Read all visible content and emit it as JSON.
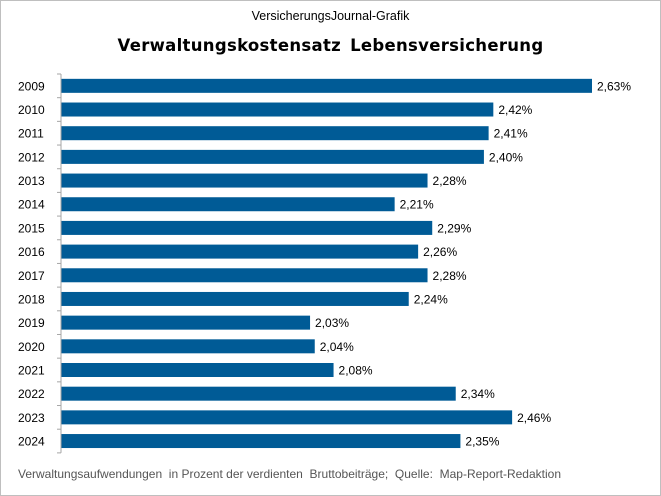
{
  "supertitle": "VersicherungsJournal-Grafik",
  "footer": "Verwaltungsaufwendungen  in Prozent der verdienten  Bruttobeiträge;  Quelle:  Map-Report-Redaktion",
  "colors": {
    "bar": "#005b96",
    "axis": "#a6a6a6"
  },
  "chart_data": {
    "type": "bar",
    "orientation": "horizontal",
    "title": "Verwaltungskostensatz  Lebensversicherung",
    "categories": [
      "2009",
      "2010",
      "2011",
      "2012",
      "2013",
      "2014",
      "2015",
      "2016",
      "2017",
      "2018",
      "2019",
      "2020",
      "2021",
      "2022",
      "2023",
      "2024"
    ],
    "values": [
      2.63,
      2.42,
      2.41,
      2.4,
      2.28,
      2.21,
      2.29,
      2.26,
      2.28,
      2.24,
      2.03,
      2.04,
      2.08,
      2.34,
      2.46,
      2.35
    ],
    "data_labels": [
      "2,63%",
      "2,42%",
      "2,41%",
      "2,40%",
      "2,28%",
      "2,21%",
      "2,29%",
      "2,26%",
      "2,28%",
      "2,24%",
      "2,03%",
      "2,04%",
      "2,08%",
      "2,34%",
      "2,46%",
      "2,35%"
    ],
    "xlim": [
      1.5,
      2.63
    ],
    "grid": false,
    "legend": "none"
  }
}
